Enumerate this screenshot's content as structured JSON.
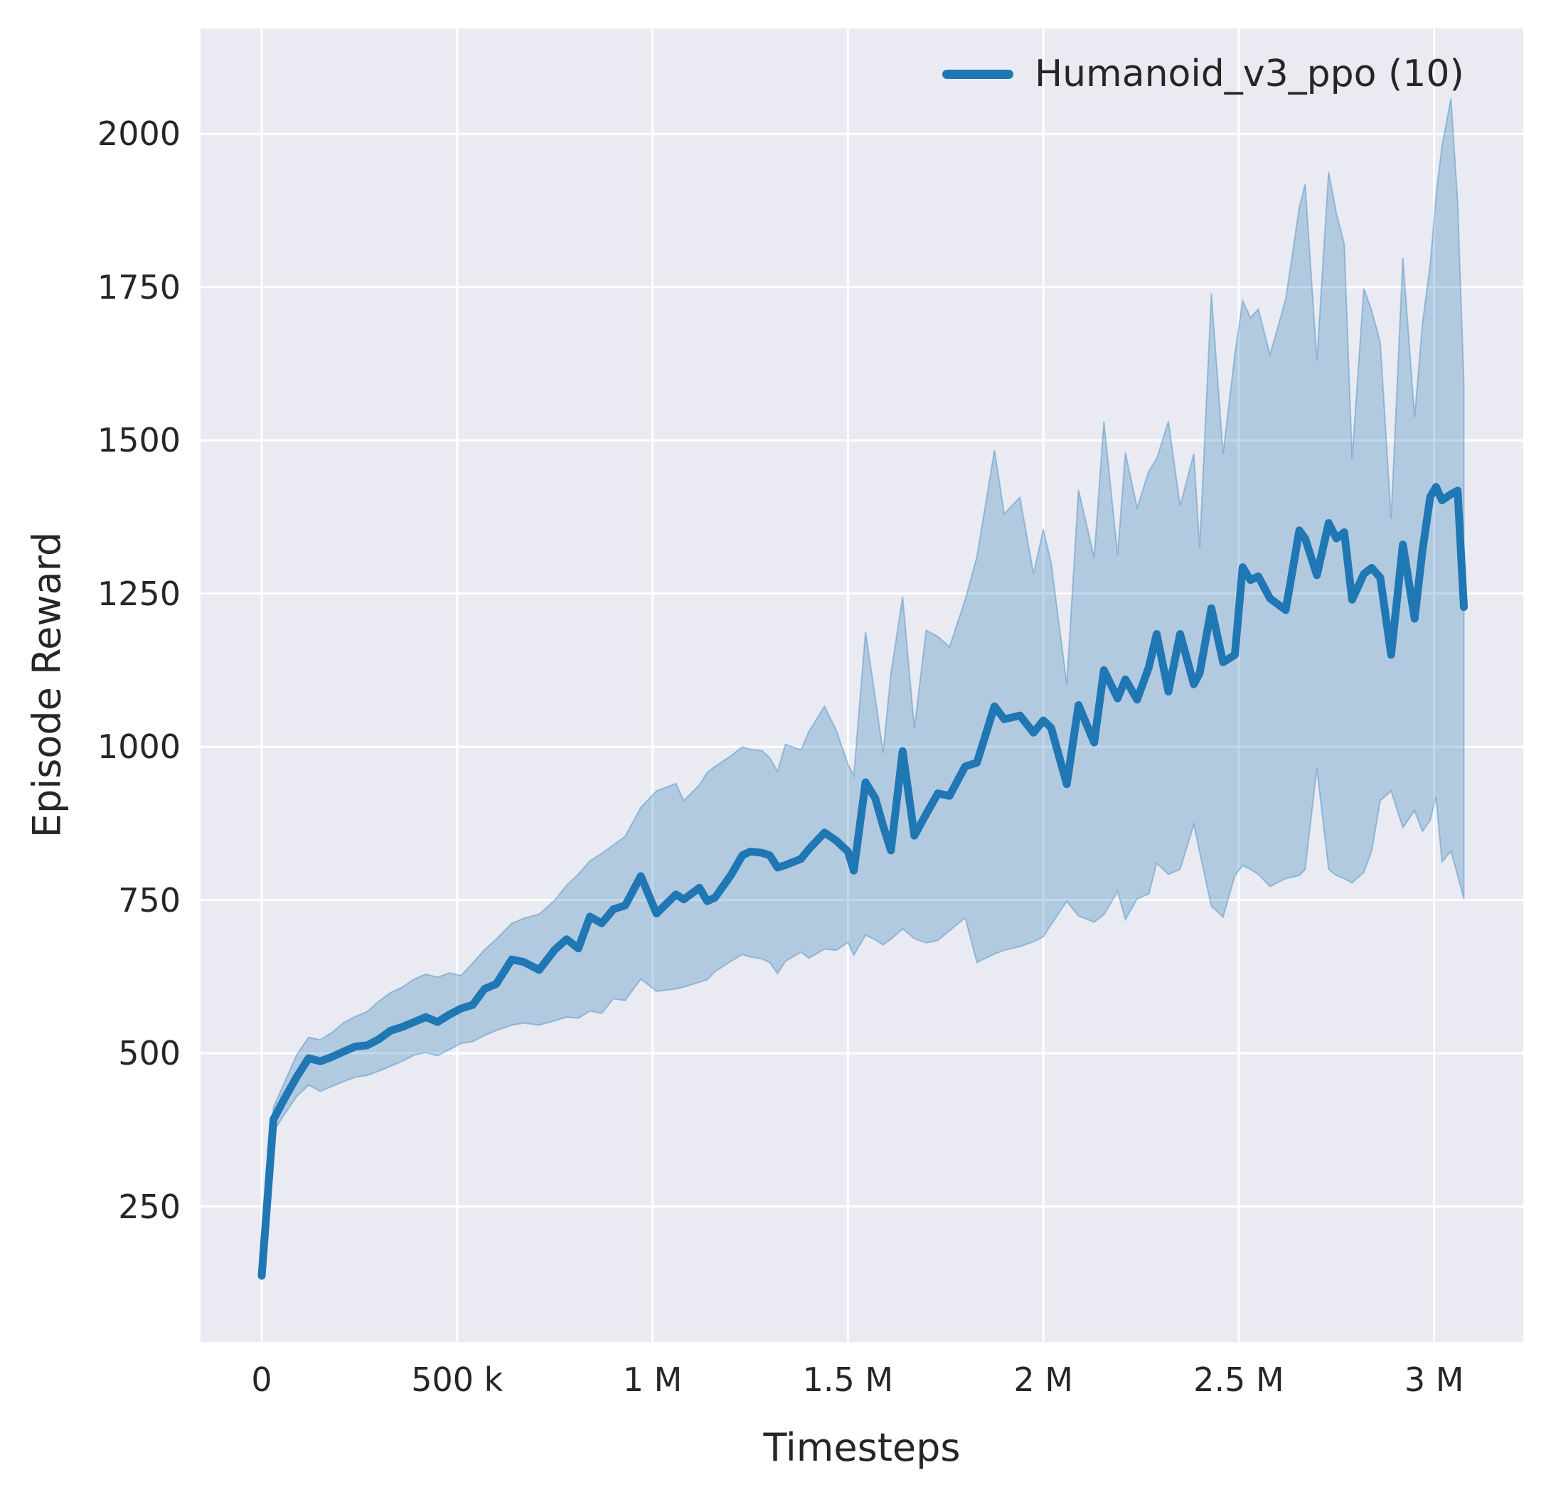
{
  "figure": {
    "background": "#ffffff",
    "plot_background": "#eaeaf2",
    "grid_color": "#ffffff",
    "text_color": "#262626"
  },
  "axes": {
    "x_label": "Timesteps",
    "y_label": "Episode Reward"
  },
  "legend": {
    "label": "Humanoid_v3_ppo (10)",
    "swatch_color": "#1f77b4"
  },
  "chart_data": {
    "type": "line",
    "title": "",
    "xlabel": "Timesteps",
    "ylabel": "Episode Reward",
    "grid": true,
    "legend_position": "upper right",
    "xlim_millions": [
      -0.1565,
      3.228
    ],
    "ylim": [
      29,
      2172
    ],
    "x_ticks": [
      {
        "value_millions": 0.0,
        "label": "0"
      },
      {
        "value_millions": 0.5,
        "label": "500 k"
      },
      {
        "value_millions": 1.0,
        "label": "1 M"
      },
      {
        "value_millions": 1.5,
        "label": "1.5 M"
      },
      {
        "value_millions": 2.0,
        "label": "2 M"
      },
      {
        "value_millions": 2.5,
        "label": "2.5 M"
      },
      {
        "value_millions": 3.0,
        "label": "3 M"
      }
    ],
    "y_ticks": [
      {
        "value": 250,
        "label": "250"
      },
      {
        "value": 500,
        "label": "500"
      },
      {
        "value": 750,
        "label": "750"
      },
      {
        "value": 1000,
        "label": "1000"
      },
      {
        "value": 1250,
        "label": "1250"
      },
      {
        "value": 1500,
        "label": "1500"
      },
      {
        "value": 1750,
        "label": "1750"
      },
      {
        "value": 2000,
        "label": "2000"
      }
    ],
    "series": [
      {
        "name": "Humanoid_v3_ppo (10)",
        "color": "#1f77b4",
        "line_width": 11,
        "band_fill": "rgba(31,119,180,0.28)",
        "band_edge": "rgba(31,119,180,0.35)",
        "x_millions": [
          0.0,
          0.03,
          0.06,
          0.09,
          0.12,
          0.15,
          0.18,
          0.21,
          0.24,
          0.27,
          0.3,
          0.33,
          0.36,
          0.39,
          0.42,
          0.45,
          0.48,
          0.51,
          0.54,
          0.57,
          0.6,
          0.64,
          0.67,
          0.71,
          0.75,
          0.78,
          0.81,
          0.84,
          0.87,
          0.9,
          0.93,
          0.97,
          1.01,
          1.06,
          1.08,
          1.12,
          1.14,
          1.16,
          1.2,
          1.23,
          1.25,
          1.28,
          1.3,
          1.32,
          1.34,
          1.38,
          1.4,
          1.44,
          1.47,
          1.5,
          1.515,
          1.545,
          1.57,
          1.59,
          1.61,
          1.64,
          1.67,
          1.7,
          1.73,
          1.76,
          1.8,
          1.83,
          1.875,
          1.9,
          1.94,
          1.975,
          2.0,
          2.02,
          2.06,
          2.09,
          2.13,
          2.155,
          2.19,
          2.21,
          2.24,
          2.27,
          2.29,
          2.32,
          2.35,
          2.385,
          2.4,
          2.43,
          2.46,
          2.49,
          2.51,
          2.53,
          2.55,
          2.58,
          2.62,
          2.655,
          2.67,
          2.7,
          2.73,
          2.75,
          2.77,
          2.79,
          2.82,
          2.84,
          2.862,
          2.89,
          2.92,
          2.95,
          2.97,
          2.99,
          3.005,
          3.02,
          3.043,
          3.06,
          3.076
        ],
        "mean": [
          137,
          392,
          428,
          462,
          492,
          487,
          494,
          503,
          511,
          513,
          523,
          537,
          543,
          551,
          559,
          551,
          563,
          573,
          579,
          605,
          613,
          653,
          649,
          636,
          669,
          686,
          671,
          723,
          712,
          735,
          741,
          789,
          728,
          759,
          751,
          770,
          748,
          754,
          790,
          823,
          829,
          827,
          823,
          803,
          807,
          817,
          833,
          860,
          847,
          829,
          798,
          942,
          916,
          871,
          831,
          993,
          855,
          890,
          924,
          920,
          968,
          974,
          1066,
          1045,
          1051,
          1023,
          1043,
          1031,
          939,
          1068,
          1007,
          1125,
          1079,
          1110,
          1077,
          1130,
          1184,
          1090,
          1184,
          1102,
          1120,
          1226,
          1138,
          1150,
          1293,
          1272,
          1278,
          1242,
          1223,
          1353,
          1340,
          1280,
          1365,
          1340,
          1350,
          1240,
          1282,
          1292,
          1276,
          1150,
          1330,
          1209,
          1320,
          1408,
          1424,
          1402,
          1412,
          1418,
          1228
        ],
        "band_low": [
          130,
          372,
          402,
          430,
          448,
          438,
          446,
          454,
          461,
          464,
          471,
          479,
          487,
          497,
          501,
          496,
          506,
          516,
          519,
          529,
          537,
          546,
          549,
          546,
          553,
          559,
          557,
          569,
          565,
          589,
          586,
          621,
          601,
          605,
          608,
          616,
          620,
          633,
          650,
          661,
          657,
          654,
          648,
          630,
          650,
          665,
          655,
          670,
          668,
          681,
          660,
          693,
          685,
          677,
          686,
          703,
          687,
          680,
          684,
          700,
          721,
          648,
          662,
          668,
          674,
          682,
          690,
          710,
          748,
          724,
          714,
          726,
          764,
          718,
          752,
          760,
          810,
          792,
          800,
          873,
          828,
          740,
          722,
          790,
          806,
          800,
          792,
          772,
          785,
          790,
          800,
          965,
          800,
          790,
          785,
          778,
          795,
          830,
          912,
          928,
          868,
          896,
          862,
          880,
          918,
          812,
          830,
          790,
          752
        ],
        "band_high": [
          148,
          412,
          455,
          498,
          526,
          522,
          534,
          550,
          560,
          568,
          585,
          599,
          608,
          621,
          629,
          624,
          631,
          627,
          647,
          669,
          686,
          712,
          720,
          727,
          750,
          774,
          792,
          814,
          826,
          840,
          854,
          901,
          928,
          940,
          912,
          938,
          958,
          968,
          985,
          1000,
          996,
          994,
          982,
          960,
          1004,
          995,
          1025,
          1066,
          1027,
          972,
          953,
          1188,
          1080,
          990,
          1120,
          1245,
          1030,
          1190,
          1180,
          1163,
          1240,
          1310,
          1484,
          1380,
          1407,
          1282,
          1355,
          1300,
          1102,
          1419,
          1309,
          1531,
          1313,
          1480,
          1390,
          1450,
          1470,
          1531,
          1393,
          1478,
          1325,
          1740,
          1478,
          1640,
          1728,
          1700,
          1714,
          1640,
          1730,
          1880,
          1918,
          1630,
          1938,
          1870,
          1820,
          1470,
          1748,
          1712,
          1660,
          1372,
          1798,
          1538,
          1690,
          1788,
          1900,
          1980,
          2058,
          1890,
          1592
        ]
      }
    ]
  }
}
